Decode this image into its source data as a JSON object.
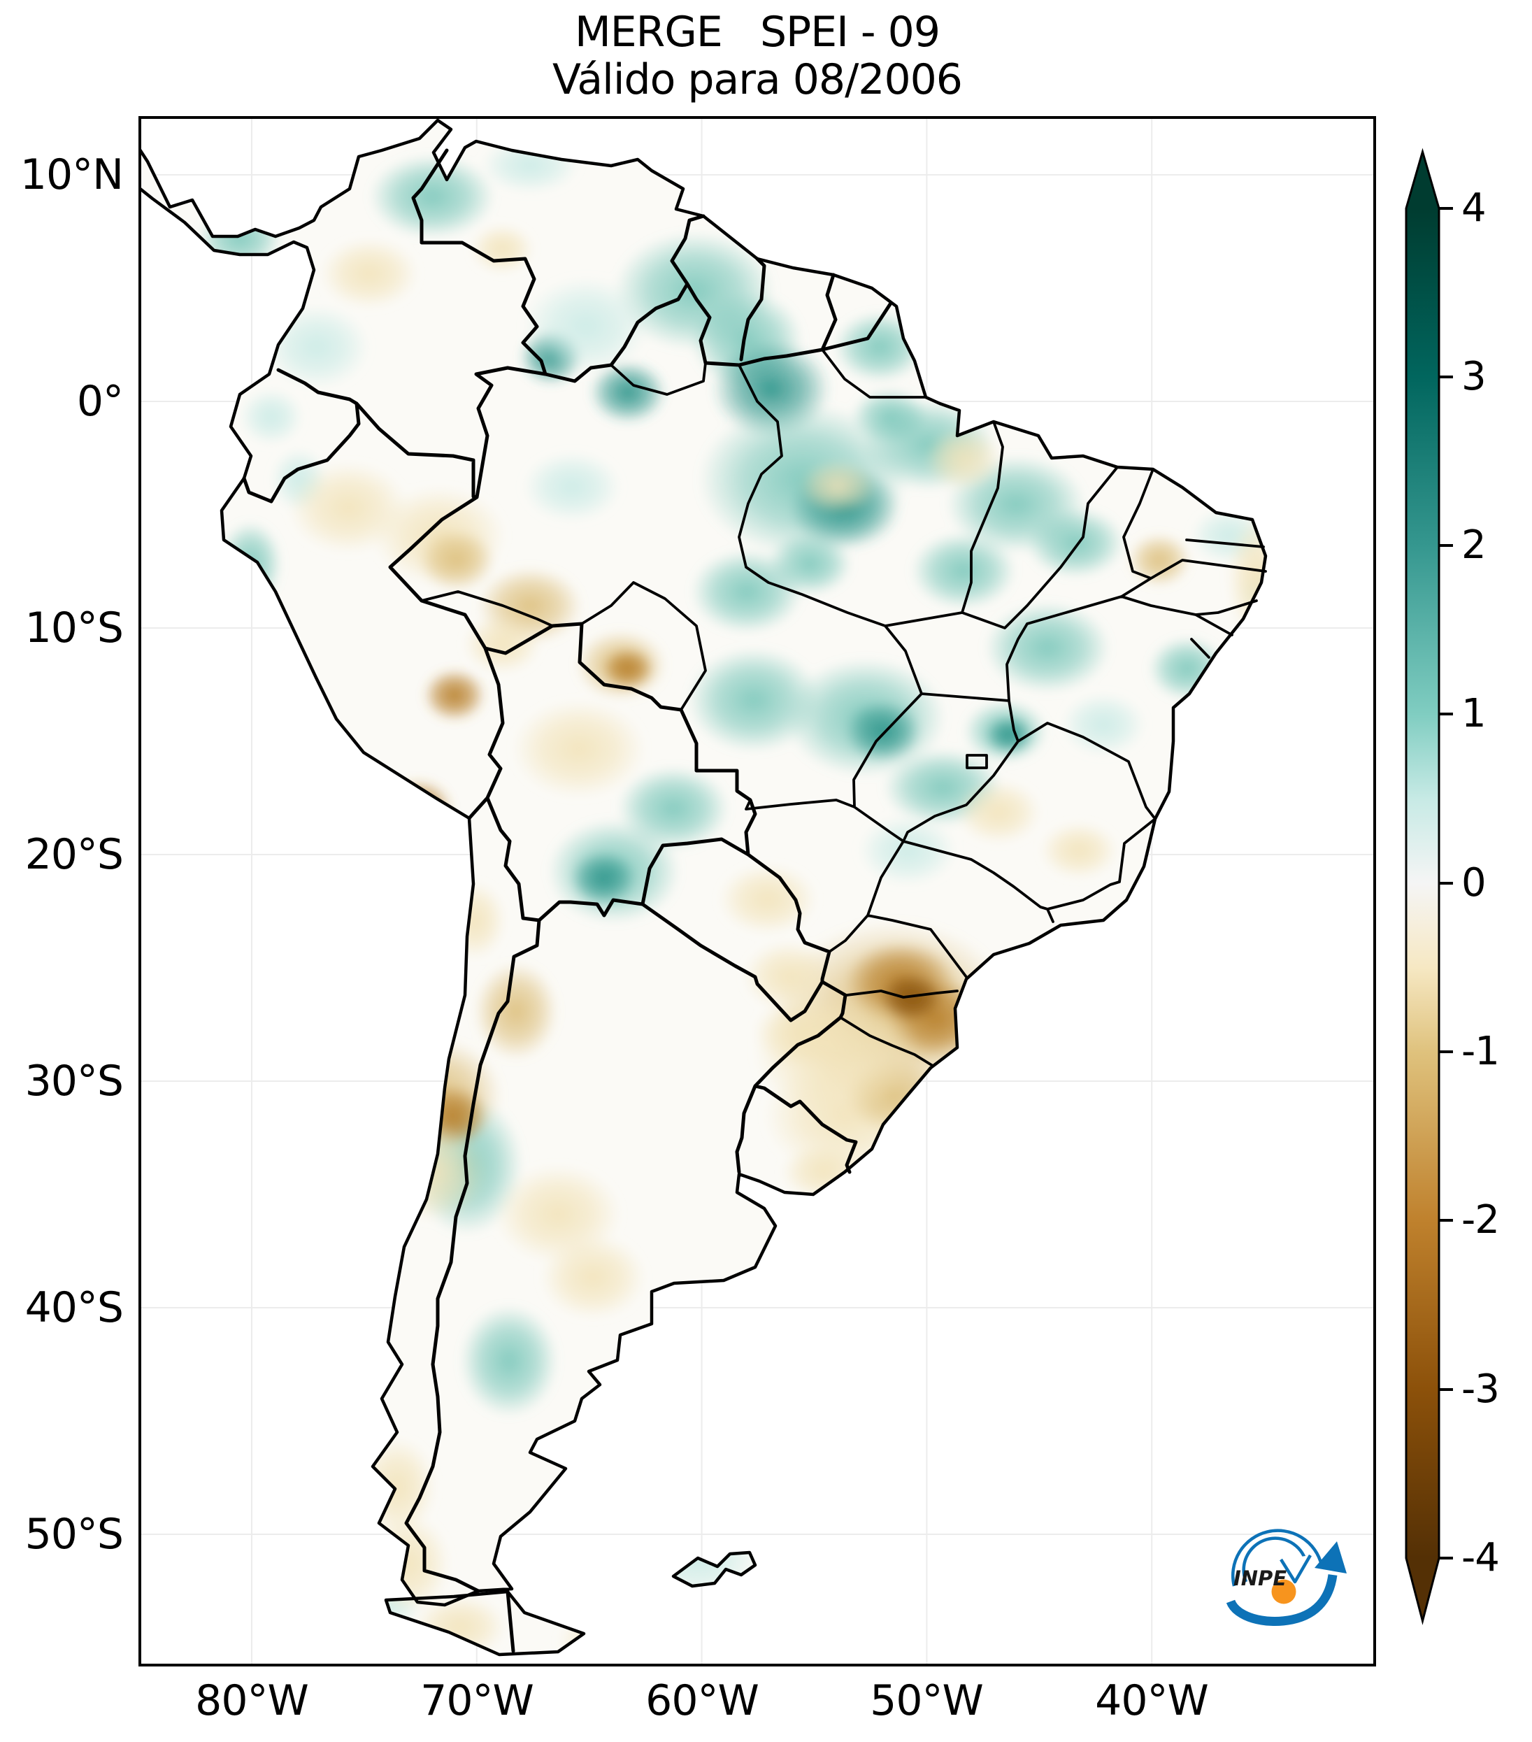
{
  "title": {
    "line1": "MERGE   SPEI - 09",
    "line2": "Válido para 08/2006"
  },
  "axes": {
    "y_ticks": [
      "10°N",
      "0°",
      "10°S",
      "20°S",
      "30°S",
      "40°S",
      "50°S"
    ],
    "x_ticks": [
      "80°W",
      "70°W",
      "60°W",
      "50°W",
      "40°W"
    ]
  },
  "colorbar": {
    "ticks": [
      "4",
      "3",
      "2",
      "1",
      "0",
      "-1",
      "-2",
      "-3",
      "-4"
    ],
    "max": 4,
    "min": -4,
    "colormap": "BrBG",
    "stops": [
      "#543005",
      "#8c510a",
      "#bf812d",
      "#dfc27d",
      "#f6e8c3",
      "#f5f5f5",
      "#c7eae5",
      "#80cdc1",
      "#35978f",
      "#01665e",
      "#003c30"
    ]
  },
  "logo": {
    "text": "INPE",
    "blue": "#0d72b7",
    "orange": "#f7941e"
  },
  "chart_data": {
    "type": "heatmap",
    "title": "MERGE   SPEI - 09",
    "subtitle": "Válido para 08/2006",
    "index": "SPEI",
    "accumulation_months": 9,
    "valid_for": "08/2006",
    "x_axis": {
      "label": "",
      "ticks": [
        "80°W",
        "70°W",
        "60°W",
        "50°W",
        "40°W"
      ],
      "lon_range_est": [
        -85,
        -30
      ]
    },
    "y_axis": {
      "label": "",
      "ticks": [
        "10°N",
        "0°",
        "10°S",
        "20°S",
        "30°S",
        "40°S",
        "50°S"
      ],
      "lat_range_est": [
        -56,
        12.8
      ]
    },
    "colorbar": {
      "range": [
        -4,
        4
      ],
      "tick_values": [
        4,
        3,
        2,
        1,
        0,
        -1,
        -2,
        -3,
        -4
      ],
      "colormap": "BrBG",
      "extend": "both"
    },
    "legend_position": "right",
    "grid": "faint lat/lon gridlines at labeled ticks",
    "region_readings": [
      {
        "region": "Guyana / Roraima border",
        "spei": 2
      },
      {
        "region": "Central Pará (Amazon)",
        "spei": 2
      },
      {
        "region": "Caribbean coast of Colombia",
        "spei": 1.5
      },
      {
        "region": "Amapá",
        "spei": 1
      },
      {
        "region": "Northern Mato Grosso",
        "spei": 1.5
      },
      {
        "region": "Eastern Bolivia (Santa Cruz)",
        "spei": 2
      },
      {
        "region": "Goiás (local spot)",
        "spei": 2
      },
      {
        "region": "Piauí / Ceará interior",
        "spei": 1
      },
      {
        "region": "Ucayali–Acre (Peru/Brazil border)",
        "spei": -2.5
      },
      {
        "region": "Madre de Dios (Peru) dark spot",
        "spei": -3.5
      },
      {
        "region": "Rondônia dark spot",
        "spei": -3
      },
      {
        "region": "Central Bolivia lowlands",
        "spei": -1
      },
      {
        "region": "Paraná / Santa Catarina (southern Brazil)",
        "spei": -3
      },
      {
        "region": "Rio Grande do Sul",
        "spei": -1.5
      },
      {
        "region": "São Paulo state",
        "spei": 0
      },
      {
        "region": "Northwestern Argentina",
        "spei": -1.5
      },
      {
        "region": "Central-western Argentina",
        "spei": -1
      },
      {
        "region": "Central Chile / Andes",
        "spei": 1
      },
      {
        "region": "Northern Patagonia (Río Negro / Chubut)",
        "spei": 1.5
      },
      {
        "region": "Southern Chile coast",
        "spei": -0.5
      },
      {
        "region": "Uruguay",
        "spei": -0.5
      },
      {
        "region": "Western Amazonas / white zones",
        "spei": 0
      }
    ],
    "field_blobs": [
      [
        420,
        115,
        90,
        60,
        "t2"
      ],
      [
        560,
        70,
        70,
        40,
        "t1"
      ],
      [
        145,
        175,
        60,
        45,
        "t2"
      ],
      [
        255,
        330,
        75,
        60,
        "t1"
      ],
      [
        795,
        250,
        115,
        85,
        "t2"
      ],
      [
        870,
        320,
        80,
        70,
        "t2"
      ],
      [
        905,
        390,
        85,
        70,
        "t3"
      ],
      [
        700,
        395,
        55,
        45,
        "t3"
      ],
      [
        590,
        345,
        45,
        40,
        "t3"
      ],
      [
        640,
        300,
        90,
        70,
        "t1"
      ],
      [
        950,
        520,
        150,
        110,
        "t2"
      ],
      [
        1010,
        560,
        80,
        60,
        "t3"
      ],
      [
        1130,
        470,
        95,
        65,
        "t2"
      ],
      [
        1255,
        555,
        100,
        70,
        "t2"
      ],
      [
        1340,
        610,
        70,
        50,
        "t2"
      ],
      [
        1180,
        650,
        75,
        55,
        "t2"
      ],
      [
        1300,
        760,
        90,
        65,
        "t2"
      ],
      [
        1500,
        790,
        55,
        45,
        "t2"
      ],
      [
        1560,
        600,
        55,
        40,
        "t1"
      ],
      [
        870,
        680,
        80,
        60,
        "t2"
      ],
      [
        1040,
        860,
        115,
        85,
        "t2"
      ],
      [
        1065,
        880,
        55,
        45,
        "t3"
      ],
      [
        1240,
        880,
        60,
        45,
        "t2"
      ],
      [
        1245,
        885,
        35,
        28,
        "t3"
      ],
      [
        680,
        1080,
        95,
        75,
        "t2"
      ],
      [
        665,
        1090,
        48,
        40,
        "t3"
      ],
      [
        765,
        990,
        80,
        60,
        "t2"
      ],
      [
        880,
        835,
        95,
        75,
        "t2"
      ],
      [
        620,
        530,
        70,
        50,
        "t1"
      ],
      [
        470,
        1500,
        80,
        100,
        "t2"
      ],
      [
        530,
        1780,
        70,
        80,
        "t2"
      ],
      [
        720,
        1930,
        110,
        95,
        "t2"
      ],
      [
        700,
        1965,
        55,
        45,
        "t3"
      ],
      [
        800,
        2060,
        90,
        60,
        "t1"
      ],
      [
        1060,
        330,
        65,
        50,
        "t2"
      ],
      [
        1075,
        430,
        55,
        40,
        "t2"
      ],
      [
        900,
        150,
        70,
        40,
        "t1"
      ],
      [
        160,
        640,
        45,
        60,
        "t2"
      ],
      [
        230,
        520,
        40,
        45,
        "t1"
      ],
      [
        1380,
        870,
        60,
        45,
        "t1"
      ],
      [
        1620,
        680,
        45,
        35,
        "t1"
      ],
      [
        350,
        2130,
        55,
        35,
        "t1"
      ],
      [
        1150,
        960,
        85,
        55,
        "t2"
      ],
      [
        1100,
        1050,
        70,
        50,
        "t1"
      ],
      [
        960,
        640,
        60,
        45,
        "t2"
      ],
      [
        190,
        430,
        45,
        40,
        "t1"
      ],
      [
        330,
        225,
        70,
        50,
        "n1"
      ],
      [
        520,
        190,
        45,
        35,
        "n1"
      ],
      [
        300,
        560,
        85,
        65,
        "n1"
      ],
      [
        430,
        600,
        95,
        70,
        "n1"
      ],
      [
        455,
        635,
        55,
        45,
        "n2"
      ],
      [
        560,
        700,
        75,
        55,
        "n2"
      ],
      [
        452,
        828,
        45,
        38,
        "n3"
      ],
      [
        400,
        990,
        50,
        42,
        "n3"
      ],
      [
        405,
        995,
        26,
        22,
        "n4"
      ],
      [
        690,
        785,
        65,
        50,
        "n2"
      ],
      [
        700,
        790,
        38,
        30,
        "n3"
      ],
      [
        630,
        905,
        95,
        70,
        "n1"
      ],
      [
        520,
        755,
        55,
        42,
        "n1"
      ],
      [
        1000,
        530,
        55,
        38,
        "n1"
      ],
      [
        1180,
        490,
        55,
        45,
        "n1"
      ],
      [
        1460,
        635,
        45,
        38,
        "n2"
      ],
      [
        1230,
        995,
        60,
        45,
        "n1"
      ],
      [
        1345,
        1050,
        55,
        40,
        "n1"
      ],
      [
        1080,
        1280,
        170,
        130,
        "n2"
      ],
      [
        1090,
        1240,
        80,
        60,
        "n3"
      ],
      [
        1140,
        1290,
        72,
        58,
        "n3"
      ],
      [
        1105,
        1260,
        45,
        35,
        "n4"
      ],
      [
        1010,
        1430,
        115,
        85,
        "n1"
      ],
      [
        1080,
        1400,
        70,
        55,
        "n2"
      ],
      [
        1000,
        1340,
        120,
        90,
        "n1"
      ],
      [
        430,
        1400,
        90,
        80,
        "n2"
      ],
      [
        450,
        1430,
        50,
        45,
        "n3"
      ],
      [
        420,
        1510,
        80,
        70,
        "n1"
      ],
      [
        600,
        1570,
        90,
        70,
        "n1"
      ],
      [
        650,
        1660,
        75,
        60,
        "n1"
      ],
      [
        370,
        1960,
        55,
        70,
        "n1"
      ],
      [
        385,
        2070,
        60,
        70,
        "n1"
      ],
      [
        460,
        2160,
        65,
        45,
        "n1"
      ],
      [
        900,
        1120,
        70,
        50,
        "n1"
      ],
      [
        930,
        1230,
        65,
        50,
        "n1"
      ],
      [
        950,
        1310,
        70,
        50,
        "n1"
      ],
      [
        480,
        1150,
        45,
        55,
        "n1"
      ],
      [
        540,
        1280,
        60,
        70,
        "n2"
      ],
      [
        980,
        1510,
        60,
        40,
        "n1"
      ],
      [
        680,
        2180,
        80,
        45,
        "n1"
      ],
      [
        1600,
        660,
        42,
        90,
        "n1"
      ],
      [
        1610,
        760,
        40,
        32,
        "n1"
      ]
    ]
  }
}
